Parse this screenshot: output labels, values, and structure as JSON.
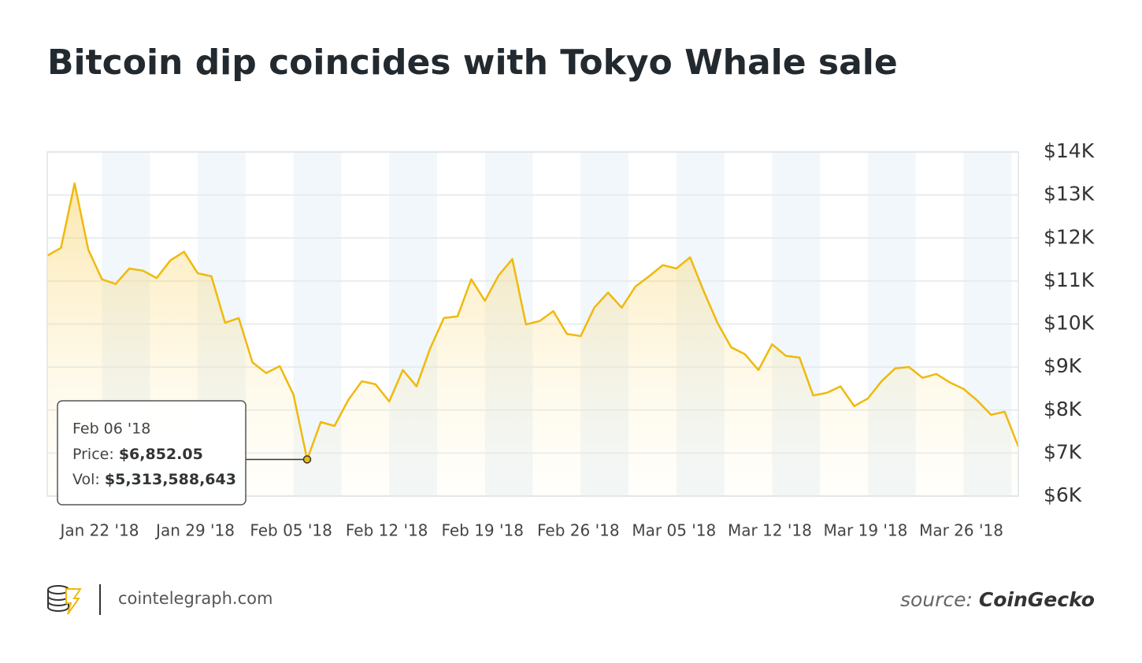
{
  "chart_data": {
    "type": "area",
    "title": "Bitcoin dip coincides with Tokyo Whale sale",
    "x": [
      "2018-01-18",
      "2018-01-19",
      "2018-01-20",
      "2018-01-21",
      "2018-01-22",
      "2018-01-23",
      "2018-01-24",
      "2018-01-25",
      "2018-01-26",
      "2018-01-27",
      "2018-01-28",
      "2018-01-29",
      "2018-01-30",
      "2018-01-31",
      "2018-02-01",
      "2018-02-02",
      "2018-02-03",
      "2018-02-04",
      "2018-02-05",
      "2018-02-06",
      "2018-02-07",
      "2018-02-08",
      "2018-02-09",
      "2018-02-10",
      "2018-02-11",
      "2018-02-12",
      "2018-02-13",
      "2018-02-14",
      "2018-02-15",
      "2018-02-16",
      "2018-02-17",
      "2018-02-18",
      "2018-02-19",
      "2018-02-20",
      "2018-02-21",
      "2018-02-22",
      "2018-02-23",
      "2018-02-24",
      "2018-02-25",
      "2018-02-26",
      "2018-02-27",
      "2018-02-28",
      "2018-03-01",
      "2018-03-02",
      "2018-03-03",
      "2018-03-04",
      "2018-03-05",
      "2018-03-06",
      "2018-03-07",
      "2018-03-08",
      "2018-03-09",
      "2018-03-10",
      "2018-03-11",
      "2018-03-12",
      "2018-03-13",
      "2018-03-14",
      "2018-03-15",
      "2018-03-16",
      "2018-03-17",
      "2018-03-18",
      "2018-03-19",
      "2018-03-20",
      "2018-03-21",
      "2018-03-22",
      "2018-03-23",
      "2018-03-24",
      "2018-03-25",
      "2018-03-26",
      "2018-03-27",
      "2018-03-28",
      "2018-03-29",
      "2018-03-30"
    ],
    "series": [
      {
        "name": "Price",
        "color": "#f0b90b",
        "values": [
          11590,
          11770,
          13270,
          11730,
          11040,
          10930,
          11290,
          11240,
          11070,
          11480,
          11680,
          11180,
          11110,
          10030,
          10140,
          9110,
          8860,
          9020,
          8360,
          6852.05,
          7720,
          7630,
          8230,
          8670,
          8600,
          8200,
          8930,
          8550,
          9440,
          10140,
          10180,
          11040,
          10540,
          11130,
          11510,
          9990,
          10070,
          10300,
          9770,
          9720,
          10380,
          10730,
          10380,
          10870,
          11110,
          11370,
          11290,
          11550,
          10760,
          10030,
          9460,
          9300,
          8930,
          9530,
          9260,
          9220,
          8340,
          8400,
          8550,
          8090,
          8270,
          8670,
          8970,
          9000,
          8750,
          8840,
          8640,
          8490,
          8220,
          7890,
          7960,
          7150
        ]
      }
    ],
    "xlim": [
      "2018-01-18",
      "2018-03-30"
    ],
    "xticks": [
      {
        "value": "2018-01-22",
        "label": "Jan 22 '18"
      },
      {
        "value": "2018-01-29",
        "label": "Jan 29 '18"
      },
      {
        "value": "2018-02-05",
        "label": "Feb 05 '18"
      },
      {
        "value": "2018-02-12",
        "label": "Feb 12 '18"
      },
      {
        "value": "2018-02-19",
        "label": "Feb 19 '18"
      },
      {
        "value": "2018-02-26",
        "label": "Feb 26 '18"
      },
      {
        "value": "2018-03-05",
        "label": "Mar 05 '18"
      },
      {
        "value": "2018-03-12",
        "label": "Mar 12 '18"
      },
      {
        "value": "2018-03-19",
        "label": "Mar 19 '18"
      },
      {
        "value": "2018-03-26",
        "label": "Mar 26 '18"
      }
    ],
    "ylim": [
      6000,
      14000
    ],
    "yticks": [
      {
        "value": 6000,
        "label": "$6K"
      },
      {
        "value": 7000,
        "label": "$7K"
      },
      {
        "value": 8000,
        "label": "$8K"
      },
      {
        "value": 9000,
        "label": "$9K"
      },
      {
        "value": 10000,
        "label": "$10K"
      },
      {
        "value": 11000,
        "label": "$11K"
      },
      {
        "value": 12000,
        "label": "$12K"
      },
      {
        "value": 13000,
        "label": "$13K"
      },
      {
        "value": 14000,
        "label": "$14K"
      }
    ],
    "grid": true,
    "tooltip": {
      "index": 19,
      "date": "Feb 06 '18",
      "price_label": "Price:",
      "price": "$6,852.05",
      "vol_label": "Vol:",
      "vol": "$5,313,588,643"
    },
    "footer": {
      "site": "cointelegraph.com",
      "source_label": "source:",
      "source": "CoinGecko"
    }
  }
}
